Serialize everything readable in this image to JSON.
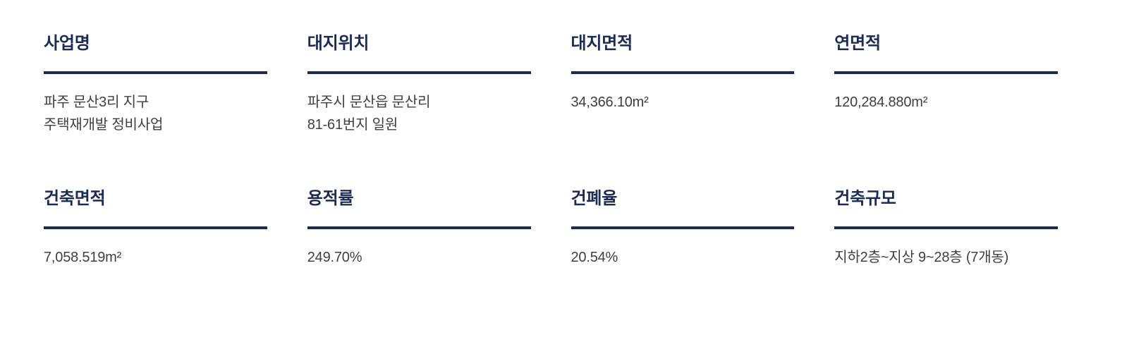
{
  "page": {
    "background_color": "#ffffff",
    "accent_color": "#1c2b51",
    "value_color": "#3f3f41"
  },
  "fields": [
    {
      "label": "사업명",
      "value_lines": [
        "파주 문산3리 지구",
        "주택재개발 정비사업"
      ]
    },
    {
      "label": "대지위치",
      "value_lines": [
        "파주시 문산읍 문산리",
        "81-61번지 일원"
      ]
    },
    {
      "label": "대지면적",
      "value_lines": [
        "34,366.10m²"
      ]
    },
    {
      "label": "연면적",
      "value_lines": [
        "120,284.880m²"
      ]
    },
    {
      "label": "건축면적",
      "value_lines": [
        "7,058.519m²"
      ]
    },
    {
      "label": "용적률",
      "value_lines": [
        "249.70%"
      ]
    },
    {
      "label": "건폐율",
      "value_lines": [
        "20.54%"
      ]
    },
    {
      "label": "건축규모",
      "value_lines": [
        "지하2층~지상 9~28층 (7개동)"
      ]
    }
  ]
}
